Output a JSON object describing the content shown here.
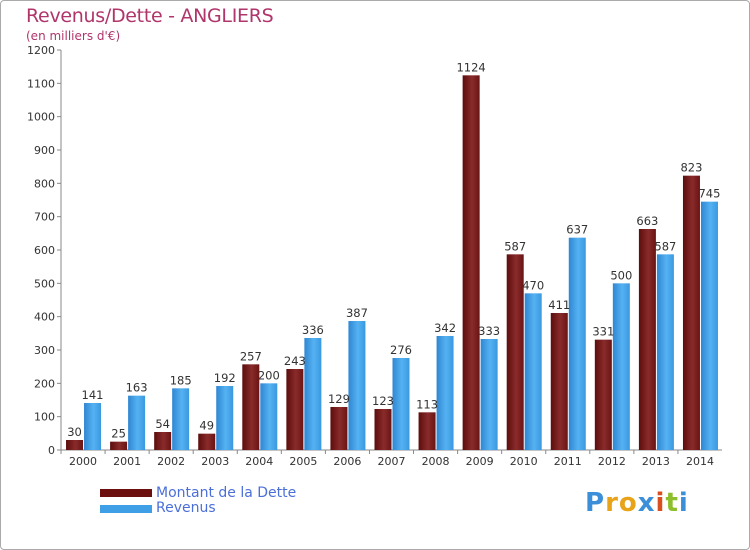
{
  "title": "Revenus/Dette - ANGLIERS",
  "subtitle": "(en milliers d'€)",
  "chart_data": {
    "type": "bar",
    "title": "Revenus/Dette - ANGLIERS",
    "subtitle": "(en milliers d'€)",
    "categories": [
      "2000",
      "2001",
      "2002",
      "2003",
      "2004",
      "2005",
      "2006",
      "2007",
      "2008",
      "2009",
      "2010",
      "2011",
      "2012",
      "2013",
      "2014"
    ],
    "series": [
      {
        "name": "Montant de la Dette",
        "color": "#7a1f1f",
        "values": [
          30,
          25,
          54,
          49,
          257,
          243,
          129,
          123,
          113,
          1124,
          587,
          411,
          331,
          663,
          823
        ]
      },
      {
        "name": "Revenus",
        "color": "#3f9fe6",
        "values": [
          141,
          163,
          185,
          192,
          200,
          336,
          387,
          276,
          342,
          333,
          470,
          637,
          500,
          587,
          745
        ]
      }
    ],
    "ylim": [
      0,
      1200
    ],
    "yticks": [
      0,
      100,
      200,
      300,
      400,
      500,
      600,
      700,
      800,
      900,
      1000,
      1100,
      1200
    ],
    "grid": false,
    "legend": "bottom-left"
  },
  "legend": {
    "items": [
      {
        "label": "Montant de la Dette",
        "color": "#6b0f0f"
      },
      {
        "label": "Revenus",
        "color": "#3f9fe6"
      }
    ]
  },
  "logo": {
    "letters": [
      "P",
      "r",
      "o",
      "x",
      "i",
      "t",
      "i"
    ],
    "colors": [
      "#3b8fd8",
      "#e8a319",
      "#e8a319",
      "#3b8fd8",
      "#d94f1f",
      "#8dbf2c",
      "#3b8fd8"
    ]
  }
}
